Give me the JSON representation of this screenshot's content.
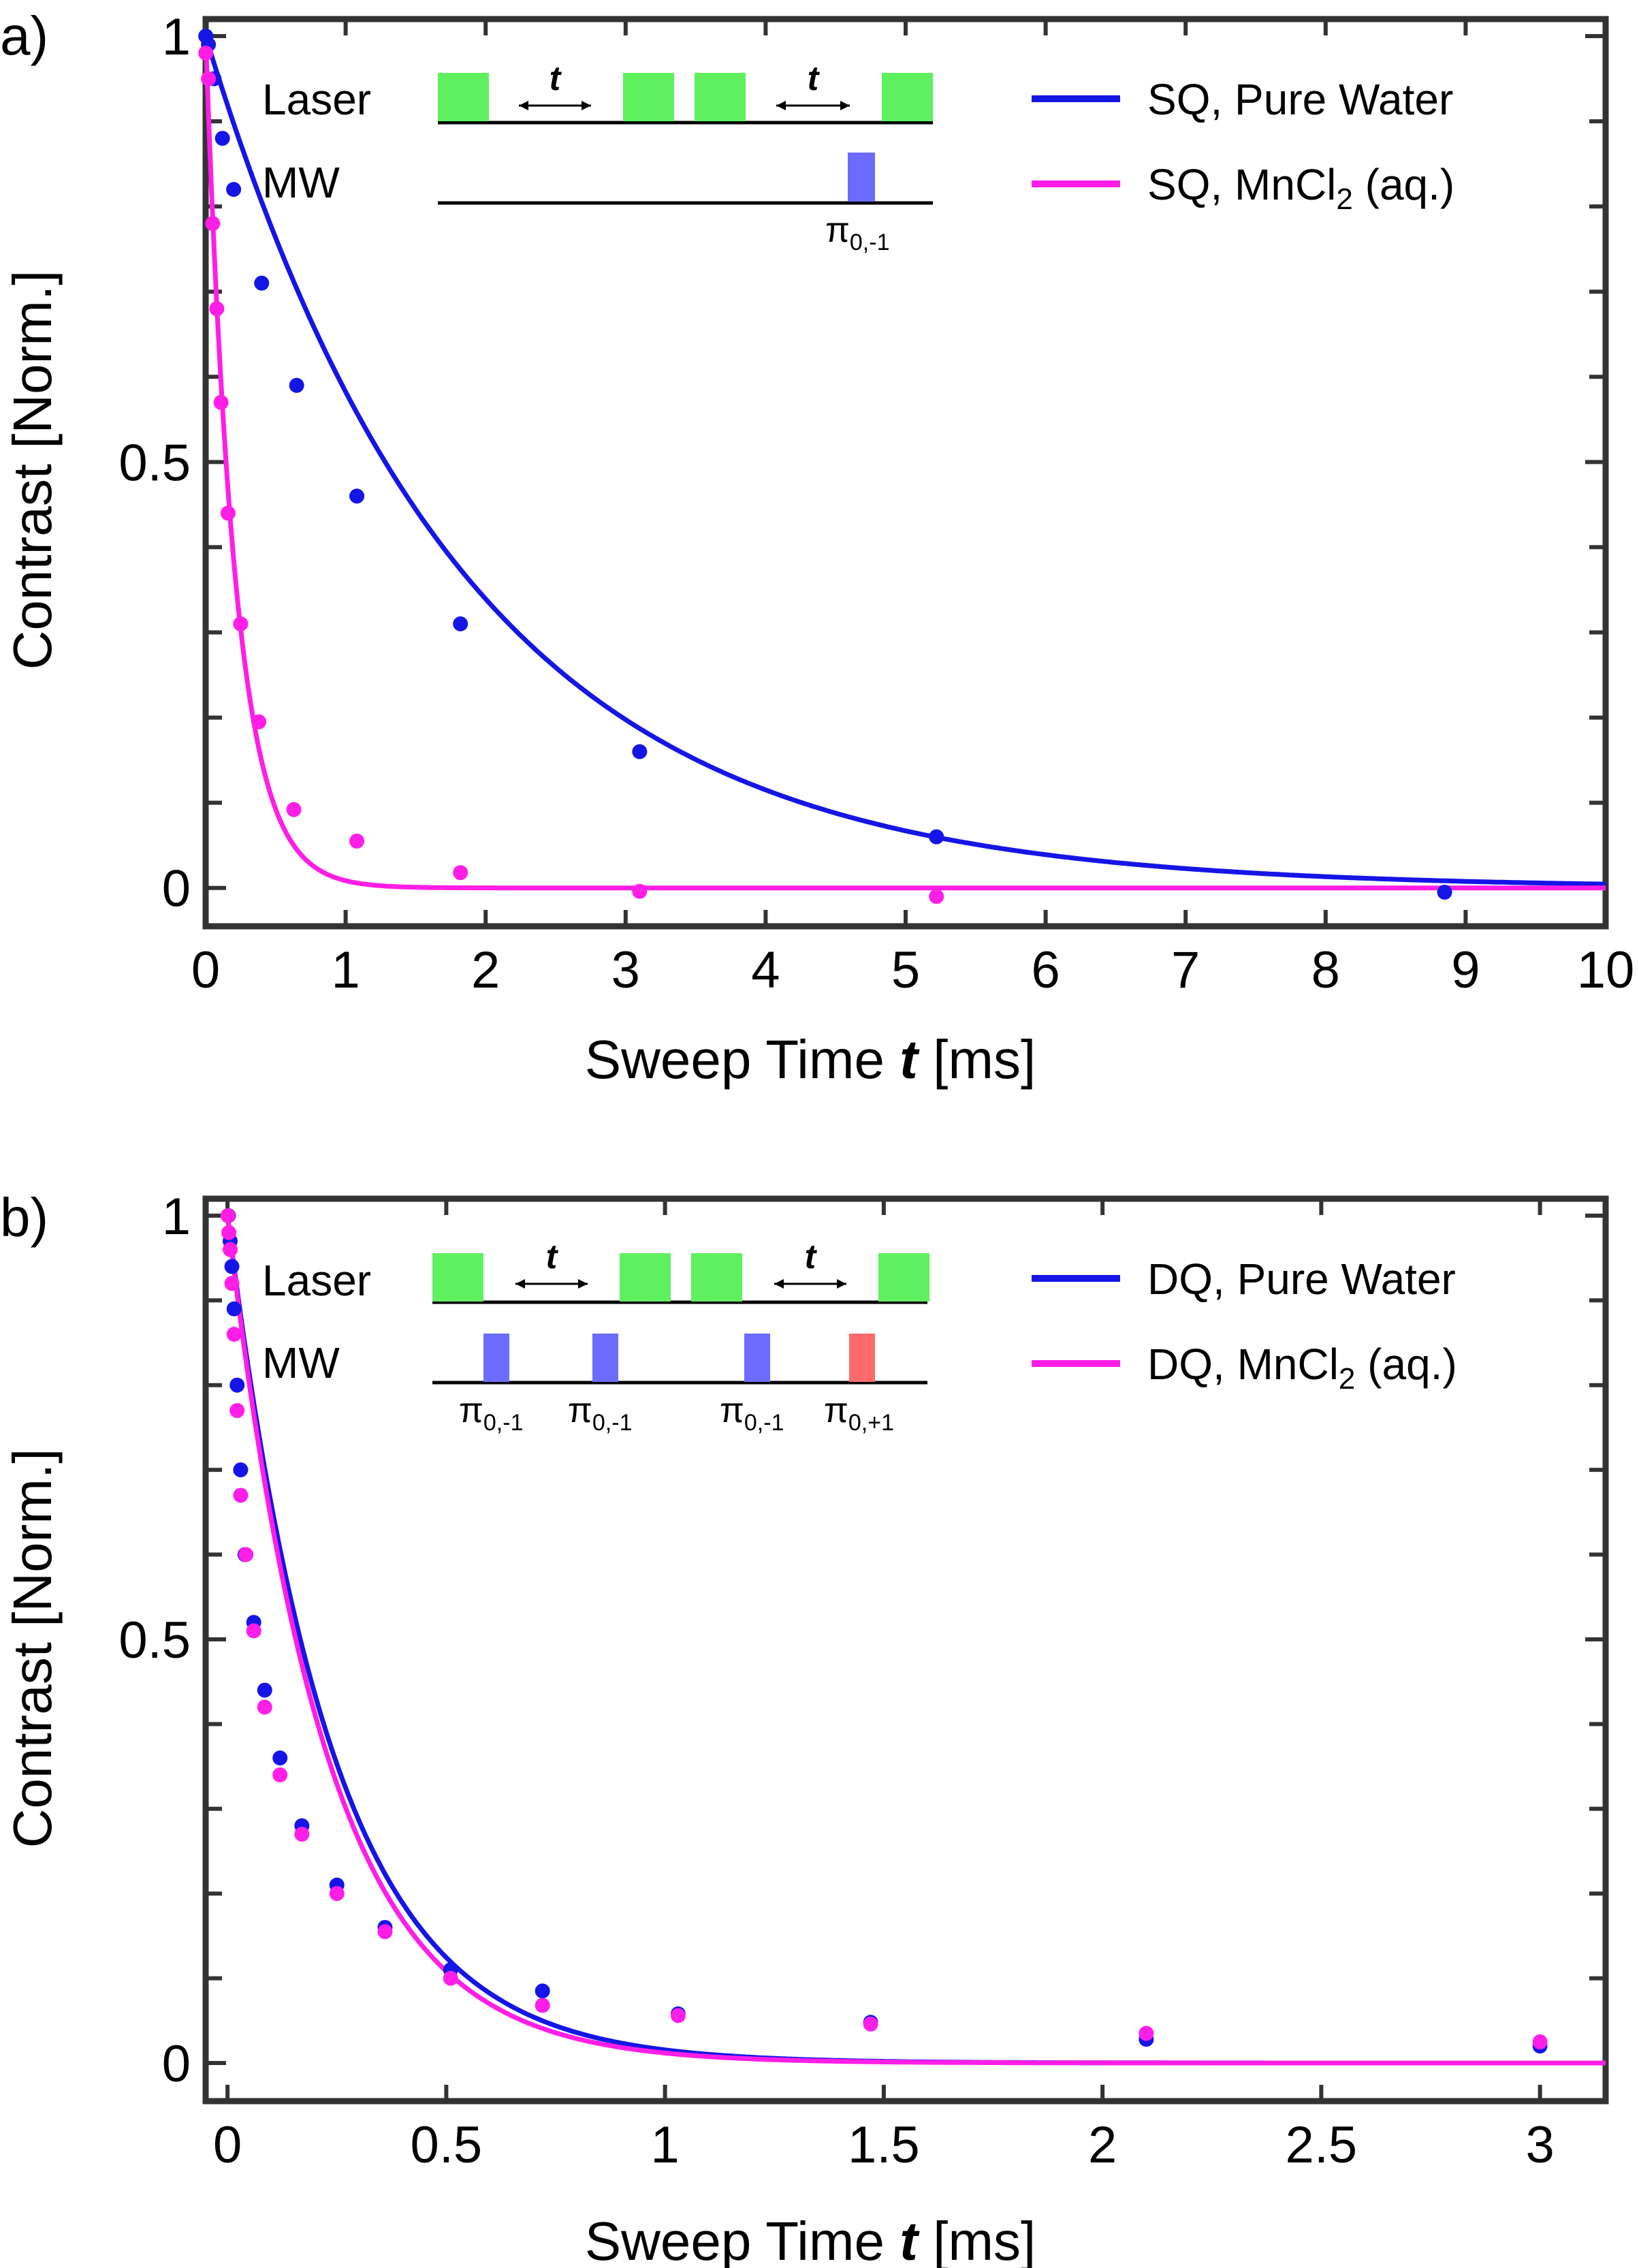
{
  "chart_data": [
    {
      "panel_label": "a)",
      "type": "scatter",
      "xlabel": "Sweep Time",
      "xlabel_var": "t",
      "xlabel_unit": "[ms]",
      "ylabel": "Contrast [Norm.]",
      "xlim": [
        0,
        10
      ],
      "ylim": [
        -0.045,
        1.02
      ],
      "xticks": [
        0,
        1,
        2,
        3,
        4,
        5,
        6,
        7,
        8,
        9,
        10
      ],
      "xtick_labels": [
        "0",
        "1",
        "2",
        "3",
        "4",
        "5",
        "6",
        "7",
        "8",
        "9",
        "10"
      ],
      "yticks": [
        0,
        0.5,
        1
      ],
      "ytick_labels": [
        "0",
        "0.5",
        "1"
      ],
      "yminor": [
        0.1,
        0.2,
        0.3,
        0.4,
        0.6,
        0.7,
        0.8,
        0.9
      ],
      "series": [
        {
          "name": "SQ, Pure Water",
          "color": "#1515e6",
          "x": [
            0.001,
            0.02,
            0.06,
            0.12,
            0.2,
            0.4,
            0.65,
            1.08,
            1.82,
            3.1,
            5.22,
            8.85
          ],
          "y": [
            1.0,
            0.99,
            0.95,
            0.88,
            0.82,
            0.71,
            0.59,
            0.46,
            0.31,
            0.16,
            0.06,
            -0.005
          ],
          "fit_tau": 1.85
        },
        {
          "name_prefix": "SQ, MnCl",
          "name_sub": "2",
          "name_suffix": " (aq.)",
          "color": "#ff1ee6",
          "x": [
            0.001,
            0.02,
            0.05,
            0.08,
            0.11,
            0.16,
            0.25,
            0.38,
            0.63,
            1.08,
            1.82,
            3.1,
            5.22
          ],
          "y": [
            0.98,
            0.95,
            0.78,
            0.68,
            0.57,
            0.44,
            0.31,
            0.195,
            0.092,
            0.055,
            0.018,
            -0.004,
            -0.01
          ],
          "fit_tau": 0.21
        }
      ],
      "inset": {
        "row_labels": [
          "Laser",
          "MW"
        ],
        "arrow_label": "t",
        "pulse_labels": [
          {
            "base": "π",
            "sub": "0,-1",
            "color": "#6b6bff"
          }
        ]
      }
    },
    {
      "panel_label": "b)",
      "type": "scatter",
      "xlabel": "Sweep Time",
      "xlabel_var": "t",
      "xlabel_unit": "[ms]",
      "ylabel": "Contrast [Norm.]",
      "xlim": [
        -0.05,
        3.15
      ],
      "ylim": [
        -0.045,
        1.02
      ],
      "xticks": [
        0,
        0.5,
        1,
        1.5,
        2,
        2.5,
        3
      ],
      "xtick_labels": [
        "0",
        "0.5",
        "1",
        "1.5",
        "2",
        "2.5",
        "3"
      ],
      "yticks": [
        0,
        0.5,
        1
      ],
      "ytick_labels": [
        "0",
        "0.5",
        "1"
      ],
      "yminor": [
        0.1,
        0.2,
        0.3,
        0.4,
        0.6,
        0.7,
        0.8,
        0.9
      ],
      "series": [
        {
          "name": "DQ, Pure Water",
          "color": "#1515e6",
          "x": [
            0.002,
            0.006,
            0.01,
            0.015,
            0.022,
            0.03,
            0.04,
            0.06,
            0.085,
            0.12,
            0.17,
            0.25,
            0.36,
            0.51,
            0.72,
            1.03,
            1.47,
            2.1,
            3.0
          ],
          "y": [
            1.0,
            0.97,
            0.94,
            0.89,
            0.8,
            0.7,
            0.6,
            0.52,
            0.44,
            0.36,
            0.28,
            0.21,
            0.16,
            0.11,
            0.085,
            0.058,
            0.048,
            0.028,
            0.02
          ],
          "fit_tau": 0.24
        },
        {
          "name_prefix": "DQ, MnCl",
          "name_sub": "2",
          "name_suffix": " (aq.)",
          "color": "#ff1ee6",
          "x": [
            0.001,
            0.003,
            0.006,
            0.01,
            0.015,
            0.022,
            0.03,
            0.042,
            0.06,
            0.085,
            0.12,
            0.17,
            0.25,
            0.36,
            0.51,
            0.72,
            1.03,
            1.47,
            2.1,
            3.0
          ],
          "y": [
            1.0,
            0.98,
            0.96,
            0.92,
            0.86,
            0.77,
            0.67,
            0.6,
            0.51,
            0.42,
            0.34,
            0.27,
            0.2,
            0.155,
            0.1,
            0.068,
            0.056,
            0.046,
            0.035,
            0.025
          ],
          "fit_tau": 0.225
        }
      ],
      "inset": {
        "row_labels": [
          "Laser",
          "MW"
        ],
        "arrow_label": "t",
        "pulse_labels": [
          {
            "base": "π",
            "sub": "0,-1",
            "color": "#6b6bff"
          },
          {
            "base": "π",
            "sub": "0,-1",
            "color": "#6b6bff"
          },
          {
            "base": "π",
            "sub": "0,-1",
            "color": "#6b6bff"
          },
          {
            "base": "π",
            "sub": "0,+1",
            "color": "#ff6b6b"
          }
        ]
      }
    }
  ],
  "colors": {
    "laser_green": "#5ef05e",
    "axis": "#333333"
  }
}
